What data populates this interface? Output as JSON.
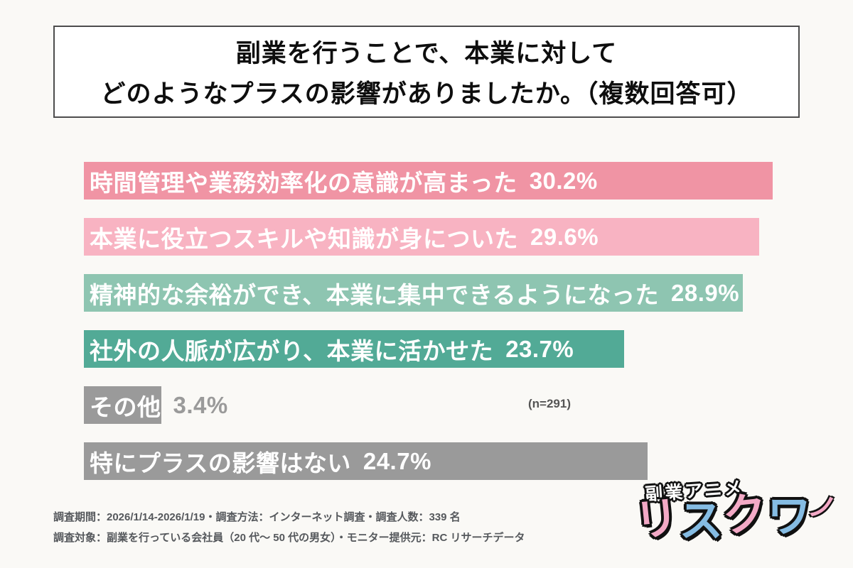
{
  "title": {
    "line1": "副業を行うことで、本業に対して",
    "line2": "どのようなプラスの影響がありましたか。（複数回答可）"
  },
  "chart_data": {
    "type": "bar",
    "orientation": "horizontal",
    "title": "副業を行うことで、本業に対してどのようなプラスの影響がありましたか。（複数回答可）",
    "categories": [
      "時間管理や業務効率化の意識が高まった",
      "本業に役立つスキルや知識が身についた",
      "精神的な余裕ができ、本業に集中できるようになった",
      "社外の人脈が広がり、本業に活かせた",
      "その他",
      "特にプラスの影響はない"
    ],
    "values": [
      30.2,
      29.6,
      28.9,
      23.7,
      3.4,
      24.7
    ],
    "value_labels": [
      "30.2%",
      "29.6%",
      "28.9%",
      "23.7%",
      "3.4%",
      "24.7%"
    ],
    "colors": [
      "#F094A4",
      "#F8B3C2",
      "#8EC5B1",
      "#52AA96",
      "#9A9A9A",
      "#9A9A9A"
    ],
    "value_outside": [
      false,
      false,
      false,
      false,
      true,
      false
    ],
    "xlim": [
      0,
      30.2
    ],
    "unit": "%",
    "grid": false,
    "legend": "none",
    "annotation": "(n=291)"
  },
  "footer": {
    "line1": "調査期間：2026/1/14-2026/1/19・調査方法：インターネット調査・調査人数：339 名",
    "line2": "調査対象：副業を行っている会社員（20 代〜 50 代の男女）・モニター提供元：RC リサーチデータ"
  },
  "logo": {
    "subtitle": "副業アニメ",
    "chars": [
      {
        "ch": "リ",
        "color": "#F3A9C6"
      },
      {
        "ch": "ス",
        "color": "#85BCE3"
      },
      {
        "ch": "ク",
        "color": "#F3A9C6"
      },
      {
        "ch": "ワ",
        "color": "#85BCE3"
      }
    ],
    "swoosh": "ノ",
    "swoosh_color": "#F3A9C6",
    "acorn_body_color": "#8B5A2B",
    "acorn_cap_color": "#53331A"
  }
}
